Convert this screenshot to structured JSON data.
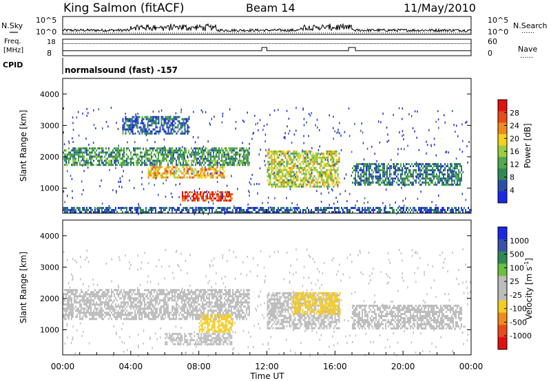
{
  "header": {
    "station": "King Salmon (fitACF)",
    "beam": "Beam 14",
    "date": "11/May/2010"
  },
  "side_labels": {
    "nsky": "N.Sky",
    "freq_line1": "Freq.",
    "freq_line2": "[MHz]",
    "cpid": "CPID",
    "nsearch": "N.Search",
    "nave": "Nave",
    "dots": "......"
  },
  "mode_label": "normalsound (fast) -157",
  "colors": {
    "power": [
      "#1a28e6",
      "#2b4fa8",
      "#2e8a55",
      "#52a84b",
      "#9ccc40",
      "#f5d21e",
      "#f08a1c",
      "#e84a1a",
      "#e01010"
    ],
    "velocity": [
      "#e01010",
      "#e84a1a",
      "#f08a1c",
      "#f5cc20",
      "#bcbcbc",
      "#bcbcbc",
      "#6cc040",
      "#2e8a55",
      "#3b50a8",
      "#1a28e6"
    ]
  },
  "chart_data": [
    {
      "type": "line",
      "name": "noise-search",
      "ylabels_left": [
        "10^5",
        "10^0"
      ],
      "ylabels_right": [
        "10^5",
        "10^0"
      ]
    },
    {
      "type": "line",
      "name": "frequency-nave",
      "ylabels_left": [
        "18",
        "8"
      ],
      "ylabels_right": [
        "60",
        "0"
      ],
      "freq_mhz_segments": [
        {
          "start_ut": 0.0,
          "end_ut": 11.7,
          "value": 11
        },
        {
          "start_ut": 11.7,
          "end_ut": 12.0,
          "value": 13
        },
        {
          "start_ut": 12.0,
          "end_ut": 16.8,
          "value": 11
        },
        {
          "start_ut": 16.8,
          "end_ut": 17.2,
          "value": 13
        },
        {
          "start_ut": 17.2,
          "end_ut": 24.0,
          "value": 11
        }
      ],
      "nave_value": 44
    },
    {
      "type": "heatmap",
      "name": "power",
      "ylabel": "Slant Range [km]",
      "yticks": [
        "1000",
        "2000",
        "3000",
        "4000"
      ],
      "ylim": [
        200,
        4500
      ],
      "colorbar_label": "Power [dB]",
      "colorbar_ticks": [
        "4",
        "8",
        "12",
        "16",
        "20",
        "24",
        "28"
      ],
      "colorbar_range": [
        0,
        30
      ],
      "echo_bands": [
        {
          "t0": 0.0,
          "t1": 11.0,
          "r0": 1700,
          "r1": 2300,
          "level": 10
        },
        {
          "t0": 5.0,
          "t1": 9.5,
          "r0": 1300,
          "r1": 1700,
          "level": 20
        },
        {
          "t0": 7.0,
          "t1": 10.0,
          "r0": 550,
          "r1": 900,
          "level": 26
        },
        {
          "t0": 3.5,
          "t1": 7.5,
          "r0": 2700,
          "r1": 3300,
          "level": 6
        },
        {
          "t0": 12.0,
          "t1": 16.3,
          "r0": 1000,
          "r1": 2200,
          "level": 16
        },
        {
          "t0": 17.0,
          "t1": 23.5,
          "r0": 1100,
          "r1": 1800,
          "level": 8
        },
        {
          "t0": 0.0,
          "t1": 24.0,
          "r0": 200,
          "r1": 400,
          "level": 5
        }
      ]
    },
    {
      "type": "heatmap",
      "name": "velocity",
      "ylabel": "Slant Range [km]",
      "yticks": [
        "1000",
        "2000",
        "3000",
        "4000"
      ],
      "ylim": [
        200,
        4500
      ],
      "colorbar_label": "Velocity [m s^-1]",
      "colorbar_ticks": [
        "1000",
        "500",
        "100",
        "25",
        "-25",
        "-100",
        "-500",
        "-1000"
      ],
      "colorbar_range": [
        -1000,
        1000
      ],
      "echo_bands": [
        {
          "t0": 0.0,
          "t1": 11.0,
          "r0": 1300,
          "r1": 2300,
          "level": 0
        },
        {
          "t0": 8.0,
          "t1": 10.0,
          "r0": 900,
          "r1": 1500,
          "level": -300
        },
        {
          "t0": 6.0,
          "t1": 10.0,
          "r0": 500,
          "r1": 900,
          "level": 0
        },
        {
          "t0": 12.0,
          "t1": 16.3,
          "r0": 1000,
          "r1": 2200,
          "level": 80
        },
        {
          "t0": 13.5,
          "t1": 16.3,
          "r0": 1500,
          "r1": 2200,
          "level": -300
        },
        {
          "t0": 17.0,
          "t1": 23.5,
          "r0": 1000,
          "r1": 1800,
          "level": 0
        }
      ]
    }
  ],
  "xaxis": {
    "label": "Time UT",
    "ticks": [
      "00:00",
      "04:00",
      "08:00",
      "12:00",
      "16:00",
      "20:00",
      "00:00"
    ],
    "range_hours": [
      0,
      24
    ]
  }
}
